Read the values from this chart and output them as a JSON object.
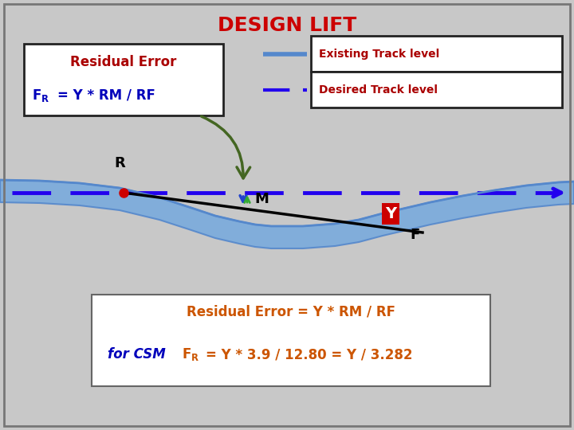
{
  "title": "DESIGN LIFT",
  "title_color": "#cc0000",
  "bg_color": "#c8c8c8",
  "border_color": "#888888",
  "track_fill": "#7aaadd",
  "track_edge": "#5588cc",
  "desired_color": "#2200ee",
  "existing_color": "#5588cc",
  "label_existing": "Existing Track level",
  "label_desired": "Desired Track level",
  "residual_label": "Residual Error",
  "fr_eq": "= Y * RM / RF",
  "red_color": "#cc0000",
  "dark_red": "#aa0000",
  "green_color": "#446622",
  "orange_color": "#cc5500",
  "blue_color": "#0000bb",
  "formula1": "Residual Error = Y * RM / RF",
  "formula_csm": "for CSM",
  "formula_fr": "= Y * 3.9 / 12.80 = Y / 3.282"
}
